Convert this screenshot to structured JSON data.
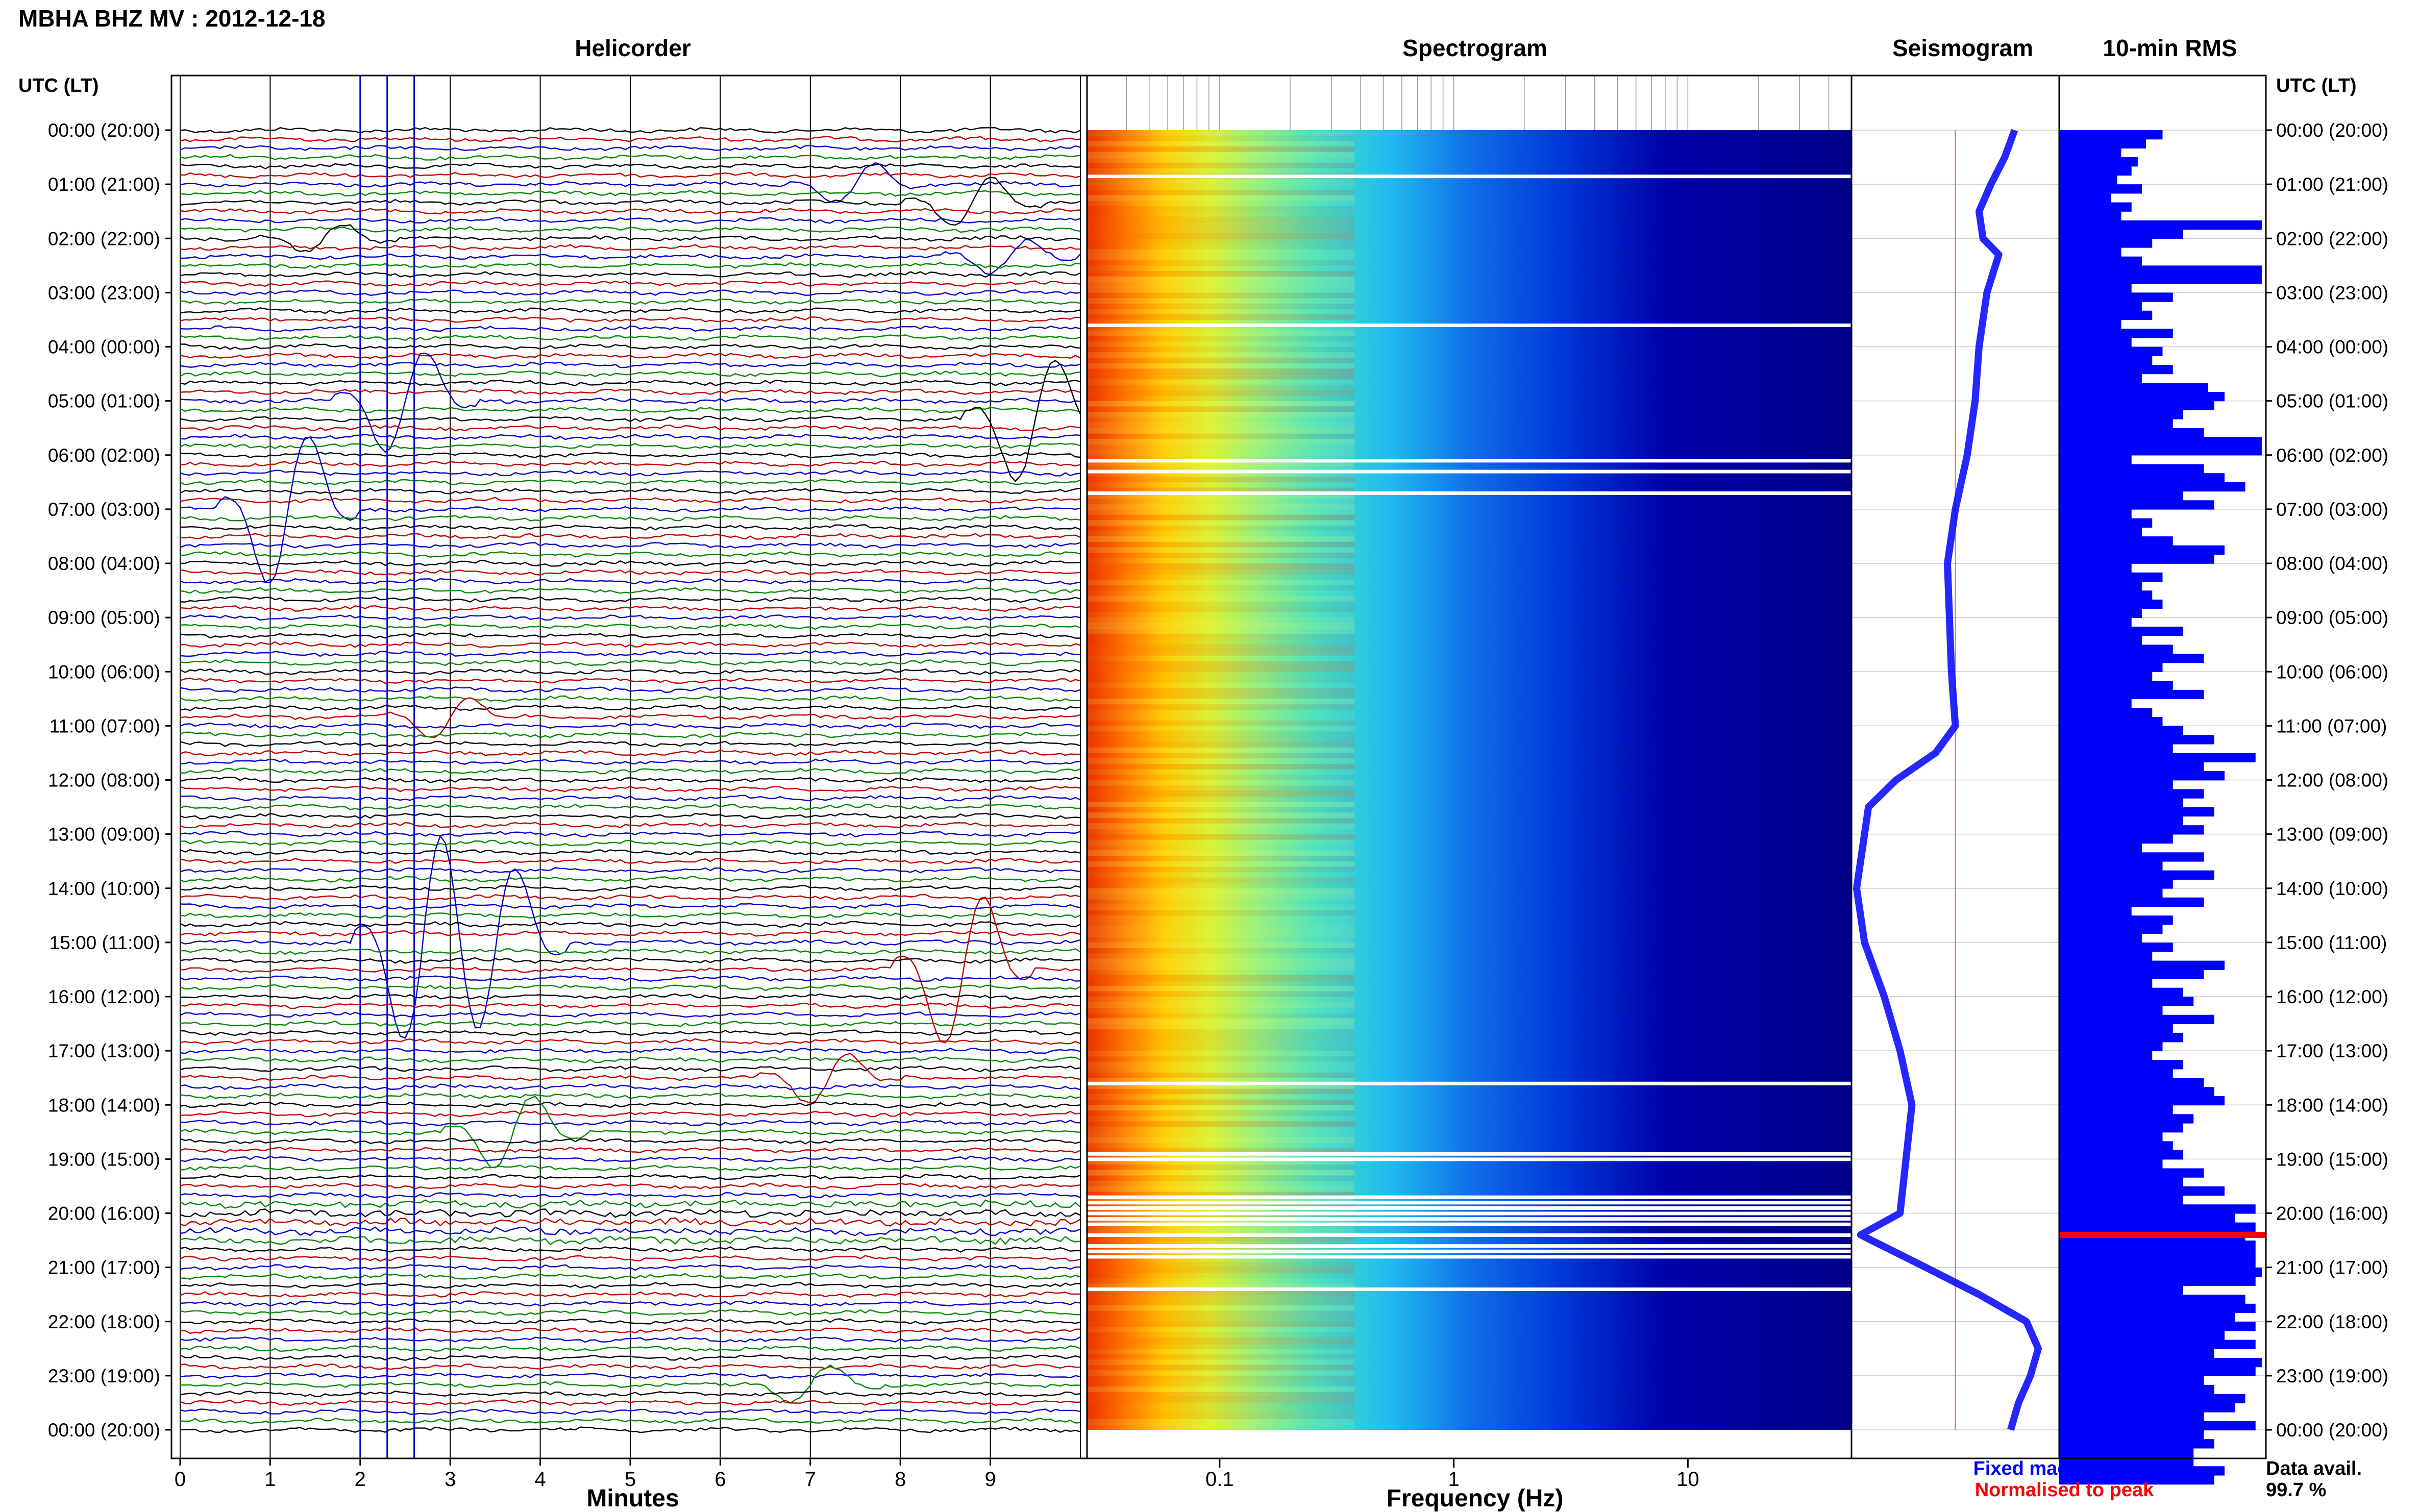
{
  "header": {
    "title": "MBHA BHZ MV : 2012-12-18",
    "panel_titles": [
      "Helicorder",
      "Spectrogram",
      "Seismogram",
      "10-min RMS"
    ],
    "left_axis_label": "UTC (LT)",
    "right_axis_label": "UTC (LT)"
  },
  "footer": {
    "helicorder_xlabel": "Minutes",
    "spectrogram_xlabel": "Frequency (Hz)",
    "legend_fixed": "Fixed magnification",
    "legend_normalised": "Normalised to peak",
    "data_avail_label": "Data avail.",
    "data_avail_value": "99.7 %"
  },
  "colors": {
    "trace_cycle": [
      "#000000",
      "#c00000",
      "#0000c8",
      "#008800"
    ],
    "fixed_magnification": "#0000ff",
    "normalised_to_peak": "#ff0000",
    "spectrogram_colormap": "jet",
    "rms_bar": "#0000ff"
  },
  "chart_data": [
    {
      "type": "line",
      "name": "helicorder",
      "title": "Helicorder",
      "xlabel": "Minutes",
      "x_ticks": [
        "0",
        "1",
        "2",
        "3",
        "4",
        "5",
        "6",
        "7",
        "8",
        "9"
      ],
      "xlim": [
        0,
        10
      ],
      "y_ticks": [
        "00:00 (20:00)",
        "01:00 (21:00)",
        "02:00 (22:00)",
        "03:00 (23:00)",
        "04:00 (00:00)",
        "05:00 (01:00)",
        "06:00 (02:00)",
        "07:00 (03:00)",
        "08:00 (04:00)",
        "09:00 (05:00)",
        "10:00 (06:00)",
        "11:00 (07:00)",
        "12:00 (08:00)",
        "13:00 (09:00)",
        "14:00 (10:00)",
        "15:00 (11:00)",
        "16:00 (12:00)",
        "17:00 (13:00)",
        "18:00 (14:00)",
        "19:00 (15:00)",
        "20:00 (16:00)",
        "21:00 (17:00)",
        "22:00 (18:00)",
        "23:00 (19:00)",
        "00:00 (20:00)"
      ],
      "traces_per_hour": 6,
      "noisy_hours": [
        19.8,
        20.5
      ],
      "events": [
        {
          "hour": 1.0,
          "minute": 7.5,
          "amp": 0.8
        },
        {
          "hour": 1.3,
          "minute": 8.8,
          "amp": 1.0
        },
        {
          "hour": 2.0,
          "minute": 1.6,
          "amp": 0.6
        },
        {
          "hour": 2.3,
          "minute": 9.2,
          "amp": 0.7
        },
        {
          "hour": 5.0,
          "minute": 2.5,
          "amp": 2.0
        },
        {
          "hour": 5.3,
          "minute": 9.5,
          "amp": 2.5
        },
        {
          "hour": 7.0,
          "minute": 1.2,
          "amp": 3.0
        },
        {
          "hour": 10.8,
          "minute": 3.0,
          "amp": 0.8
        },
        {
          "hour": 15.0,
          "minute": 2.7,
          "amp": 4.0
        },
        {
          "hour": 15.0,
          "minute": 3.5,
          "amp": 3.0
        },
        {
          "hour": 15.5,
          "minute": 8.7,
          "amp": 3.0
        },
        {
          "hour": 17.5,
          "minute": 7.2,
          "amp": 1.0
        },
        {
          "hour": 18.5,
          "minute": 3.7,
          "amp": 1.5
        },
        {
          "hour": 23.2,
          "minute": 7.0,
          "amp": 0.7
        }
      ],
      "vertical_lines_minutes": [
        2.0,
        2.3,
        2.6
      ]
    },
    {
      "type": "heatmap",
      "name": "spectrogram",
      "title": "Spectrogram",
      "xlabel": "Frequency (Hz)",
      "x_scale": "log",
      "xlim": [
        0.03,
        50
      ],
      "x_ticks": [
        "0.1",
        "1",
        "10"
      ],
      "colormap": "jet",
      "gap_hours": [
        0.85,
        3.6,
        6.1,
        6.3,
        6.7,
        17.6,
        18.9,
        19.0,
        19.7,
        19.8,
        19.9,
        20.0,
        20.1,
        20.2,
        20.4,
        20.6,
        20.7,
        20.8,
        21.4
      ]
    },
    {
      "type": "line",
      "name": "seismogram",
      "title": "Seismogram",
      "x_scale": "relative amplitude (0 = left edge, 1 = right edge)",
      "baseline_x": 0.5,
      "points": [
        [
          0.0,
          0.8
        ],
        [
          0.5,
          0.75
        ],
        [
          1.0,
          0.68
        ],
        [
          1.5,
          0.62
        ],
        [
          2.0,
          0.64
        ],
        [
          2.3,
          0.72
        ],
        [
          3.0,
          0.66
        ],
        [
          4.0,
          0.62
        ],
        [
          5.0,
          0.6
        ],
        [
          6.0,
          0.56
        ],
        [
          7.0,
          0.5
        ],
        [
          8.0,
          0.46
        ],
        [
          9.0,
          0.47
        ],
        [
          10.0,
          0.48
        ],
        [
          11.0,
          0.5
        ],
        [
          11.5,
          0.4
        ],
        [
          12.0,
          0.2
        ],
        [
          12.5,
          0.06
        ],
        [
          13.0,
          0.04
        ],
        [
          14.0,
          0.0
        ],
        [
          15.0,
          0.04
        ],
        [
          16.0,
          0.14
        ],
        [
          17.0,
          0.22
        ],
        [
          18.0,
          0.28
        ],
        [
          19.0,
          0.25
        ],
        [
          20.0,
          0.22
        ],
        [
          20.4,
          0.02
        ],
        [
          21.0,
          0.35
        ],
        [
          21.5,
          0.62
        ],
        [
          22.0,
          0.86
        ],
        [
          22.5,
          0.92
        ],
        [
          23.0,
          0.88
        ],
        [
          23.5,
          0.82
        ],
        [
          24.0,
          0.78
        ]
      ]
    },
    {
      "type": "bar",
      "name": "rms",
      "title": "10-min RMS",
      "orientation": "horizontal",
      "x_scale": "relative (0 = left edge, 1 = right edge)",
      "hours_per_bar": 0.1667,
      "values": [
        0.5,
        0.42,
        0.3,
        0.38,
        0.35,
        0.28,
        0.4,
        0.25,
        0.35,
        0.3,
        0.98,
        0.6,
        0.45,
        0.3,
        0.4,
        0.98,
        0.98,
        0.35,
        0.55,
        0.4,
        0.45,
        0.3,
        0.55,
        0.35,
        0.5,
        0.45,
        0.55,
        0.4,
        0.72,
        0.8,
        0.75,
        0.6,
        0.55,
        0.7,
        0.98,
        0.98,
        0.35,
        0.7,
        0.8,
        0.9,
        0.6,
        0.75,
        0.35,
        0.45,
        0.4,
        0.55,
        0.8,
        0.75,
        0.35,
        0.5,
        0.4,
        0.45,
        0.5,
        0.4,
        0.35,
        0.6,
        0.4,
        0.55,
        0.7,
        0.5,
        0.45,
        0.55,
        0.7,
        0.35,
        0.45,
        0.5,
        0.6,
        0.75,
        0.55,
        0.95,
        0.7,
        0.8,
        0.55,
        0.7,
        0.6,
        0.75,
        0.6,
        0.7,
        0.55,
        0.4,
        0.7,
        0.5,
        0.75,
        0.55,
        0.5,
        0.7,
        0.35,
        0.55,
        0.5,
        0.4,
        0.55,
        0.45,
        0.8,
        0.7,
        0.45,
        0.6,
        0.65,
        0.5,
        0.75,
        0.55,
        0.6,
        0.5,
        0.45,
        0.6,
        0.55,
        0.7,
        0.75,
        0.8,
        0.55,
        0.65,
        0.6,
        0.5,
        0.55,
        0.6,
        0.5,
        0.7,
        0.6,
        0.8,
        0.6,
        0.95,
        0.85,
        0.95,
        0.9,
        0.95,
        0.95,
        0.95,
        0.98,
        0.95,
        0.6,
        0.9,
        0.95,
        0.85,
        0.95,
        0.8,
        0.95,
        0.75,
        0.98,
        0.95,
        0.7,
        0.75,
        0.9,
        0.85,
        0.7,
        0.95,
        0.7,
        0.75,
        0.65,
        0.65,
        0.8,
        0.75
      ],
      "red_bar_hours": [
        20.4
      ]
    }
  ]
}
